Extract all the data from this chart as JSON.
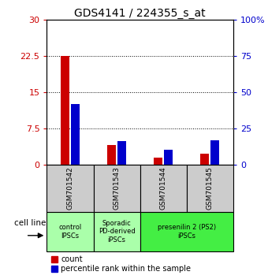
{
  "title": "GDS4141 / 224355_s_at",
  "samples": [
    "GSM701542",
    "GSM701543",
    "GSM701544",
    "GSM701545"
  ],
  "count_values": [
    22.5,
    4.0,
    1.5,
    2.2
  ],
  "percentile_values": [
    42.0,
    16.0,
    10.0,
    17.0
  ],
  "ylim_left": [
    0,
    30
  ],
  "ylim_right": [
    0,
    100
  ],
  "yticks_left": [
    0,
    7.5,
    15,
    22.5,
    30
  ],
  "ytick_labels_left": [
    "0",
    "7.5",
    "15",
    "22.5",
    "30"
  ],
  "ytick_labels_right": [
    "0",
    "25",
    "50",
    "75",
    "100%"
  ],
  "red_color": "#cc0000",
  "blue_color": "#0000cc",
  "legend_red": "count",
  "legend_blue": "percentile rank within the sample",
  "cell_line_label": "cell line",
  "title_fontsize": 10,
  "tick_fontsize": 8,
  "bar_width": 0.18,
  "bar_gap": 0.04,
  "groups": [
    {
      "label": "control\nIPSCs",
      "start": 0,
      "end": 1,
      "color": "#aaffaa"
    },
    {
      "label": "Sporadic\nPD-derived\niPSCs",
      "start": 1,
      "end": 2,
      "color": "#aaffaa"
    },
    {
      "label": "presenilin 2 (PS2)\niPSCs",
      "start": 2,
      "end": 4,
      "color": "#44ee44"
    }
  ]
}
